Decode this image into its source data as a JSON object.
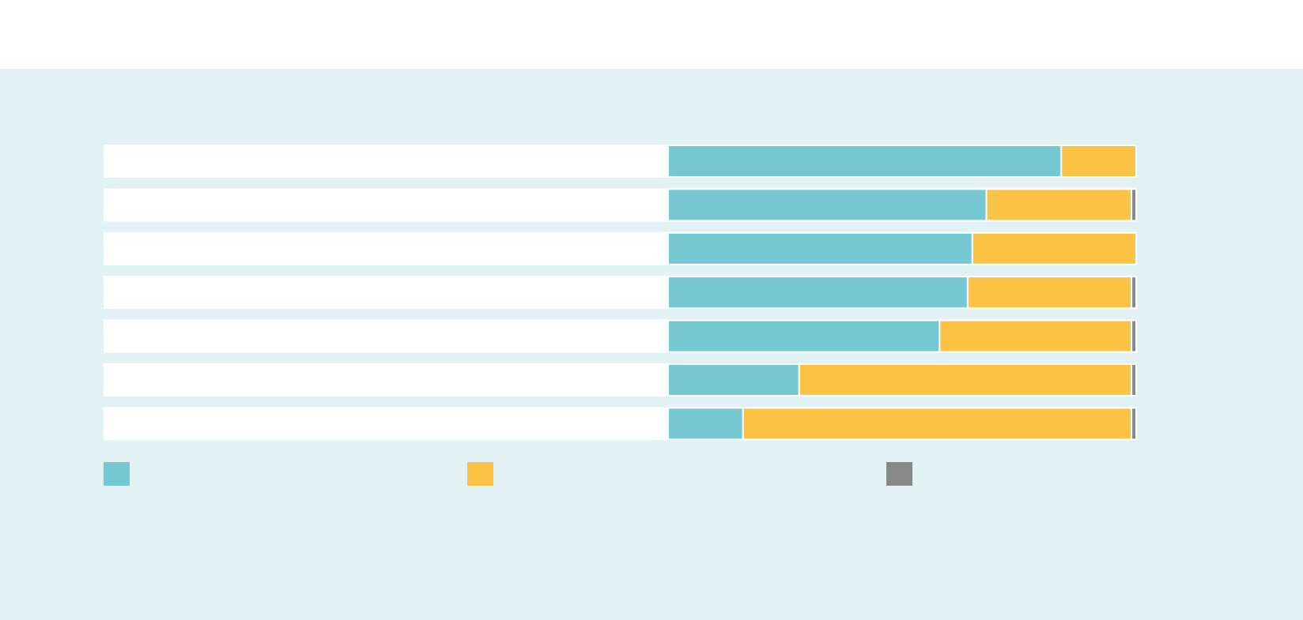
{
  "chart_data": {
    "type": "stacked-bar-horizontal",
    "categories": [
      null,
      null,
      null,
      null,
      null,
      null,
      null
    ],
    "series": [
      {
        "color": "#75c7d2",
        "values": [
          84,
          68,
          65,
          64,
          58,
          28,
          16
        ]
      },
      {
        "color": "#fcc244",
        "values": [
          16,
          31,
          35,
          35,
          41,
          71,
          83
        ]
      },
      {
        "color": "#888888",
        "values": [
          0,
          1,
          0,
          1,
          1,
          1,
          1
        ]
      }
    ],
    "xlim": [
      0,
      100
    ]
  }
}
